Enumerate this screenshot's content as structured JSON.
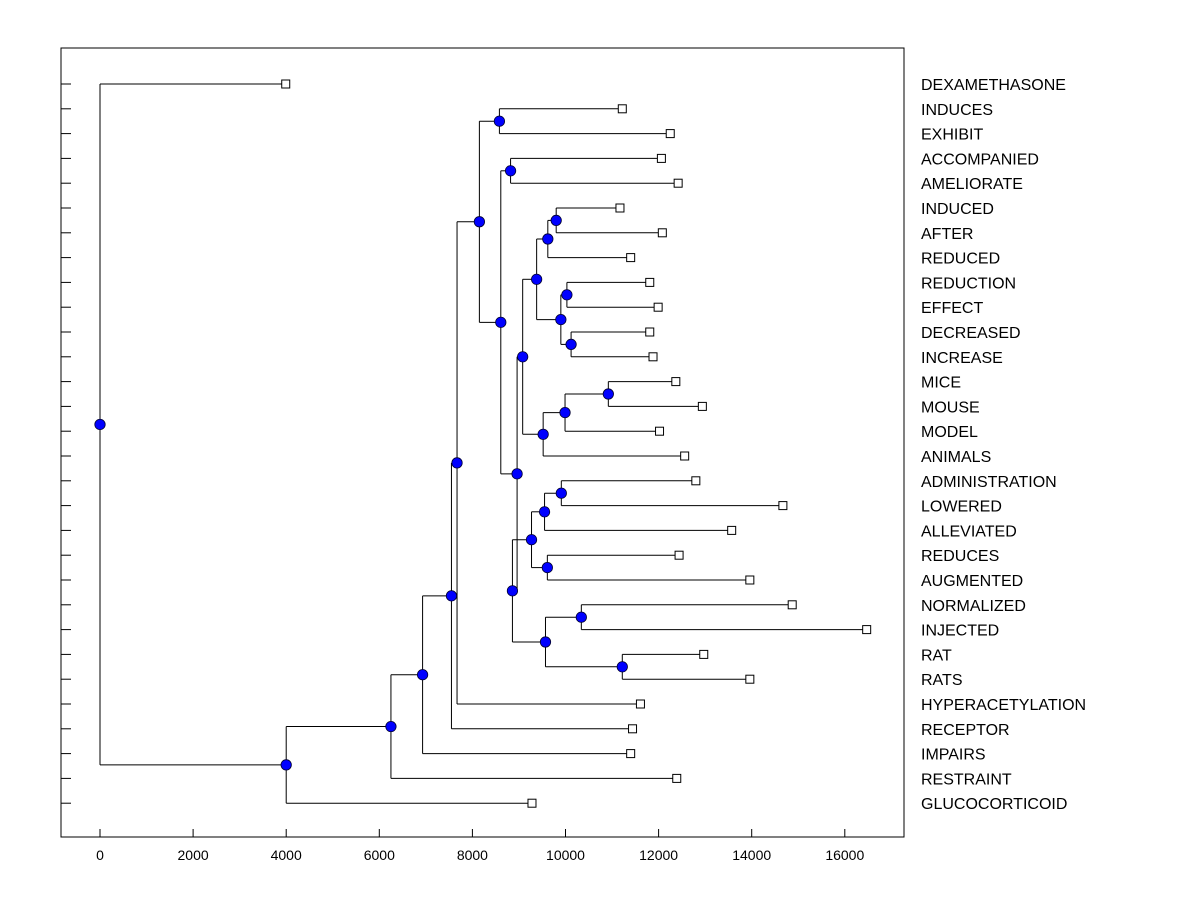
{
  "chart_data": {
    "type": "dendrogram",
    "title": "",
    "xlabel": "",
    "ylabel": "",
    "xlim": [
      -820,
      17300
    ],
    "xticks": [
      0,
      2000,
      4000,
      6000,
      8000,
      10000,
      12000,
      14000,
      16000
    ],
    "xtick_labels": [
      "0",
      "2000",
      "4000",
      "6000",
      "8000",
      "10000",
      "12000",
      "14000",
      "16000"
    ],
    "leaves": [
      {
        "label": "DEXAMETHASONE",
        "x": 3990
      },
      {
        "label": "INDUCES",
        "x": 11220
      },
      {
        "label": "EXHIBIT",
        "x": 12250
      },
      {
        "label": "ACCOMPANIED",
        "x": 12060
      },
      {
        "label": "AMELIORATE",
        "x": 12420
      },
      {
        "label": "INDUCED",
        "x": 11170
      },
      {
        "label": "AFTER",
        "x": 12080
      },
      {
        "label": "REDUCED",
        "x": 11400
      },
      {
        "label": "REDUCTION",
        "x": 11810
      },
      {
        "label": "EFFECT",
        "x": 11990
      },
      {
        "label": "DECREASED",
        "x": 11810
      },
      {
        "label": "INCREASE",
        "x": 11880
      },
      {
        "label": "MICE",
        "x": 12370
      },
      {
        "label": "MOUSE",
        "x": 12940
      },
      {
        "label": "MODEL",
        "x": 12020
      },
      {
        "label": "ANIMALS",
        "x": 12560
      },
      {
        "label": "ADMINISTRATION",
        "x": 12800
      },
      {
        "label": "LOWERED",
        "x": 14670
      },
      {
        "label": "ALLEVIATED",
        "x": 13570
      },
      {
        "label": "REDUCES",
        "x": 12440
      },
      {
        "label": "AUGMENTED",
        "x": 13960
      },
      {
        "label": "NORMALIZED",
        "x": 14870
      },
      {
        "label": "INJECTED",
        "x": 16470
      },
      {
        "label": "RAT",
        "x": 12970
      },
      {
        "label": "RATS",
        "x": 13960
      },
      {
        "label": "HYPERACETYLATION",
        "x": 11610
      },
      {
        "label": "RECEPTOR",
        "x": 11440
      },
      {
        "label": "IMPAIRS",
        "x": 11400
      },
      {
        "label": "RESTRAINT",
        "x": 12390
      },
      {
        "label": "GLUCOCORTICOID",
        "x": 9280
      }
    ],
    "merges": [
      {
        "id": "n1",
        "x": 8580,
        "children": [
          "INDUCES",
          "EXHIBIT"
        ]
      },
      {
        "id": "n2",
        "x": 8820,
        "children": [
          "ACCOMPANIED",
          "AMELIORATE"
        ]
      },
      {
        "id": "n3",
        "x": 9800,
        "children": [
          "INDUCED",
          "AFTER"
        ]
      },
      {
        "id": "n4",
        "x": 9620,
        "children": [
          "n3",
          "REDUCED"
        ]
      },
      {
        "id": "n5",
        "x": 10030,
        "children": [
          "REDUCTION",
          "EFFECT"
        ]
      },
      {
        "id": "n6",
        "x": 10120,
        "children": [
          "DECREASED",
          "INCREASE"
        ]
      },
      {
        "id": "n7",
        "x": 9900,
        "children": [
          "n5",
          "n6"
        ]
      },
      {
        "id": "n8",
        "x": 9380,
        "children": [
          "n4",
          "n7"
        ]
      },
      {
        "id": "n9",
        "x": 10920,
        "children": [
          "MICE",
          "MOUSE"
        ]
      },
      {
        "id": "n10",
        "x": 9990,
        "children": [
          "n9",
          "MODEL"
        ]
      },
      {
        "id": "n11",
        "x": 9520,
        "children": [
          "n10",
          "ANIMALS"
        ]
      },
      {
        "id": "n12",
        "x": 9080,
        "children": [
          "n8",
          "n11"
        ]
      },
      {
        "id": "n13",
        "x": 9910,
        "children": [
          "ADMINISTRATION",
          "LOWERED"
        ]
      },
      {
        "id": "n14",
        "x": 9550,
        "children": [
          "n13",
          "ALLEVIATED"
        ]
      },
      {
        "id": "n15",
        "x": 9610,
        "children": [
          "REDUCES",
          "AUGMENTED"
        ]
      },
      {
        "id": "n16",
        "x": 9270,
        "children": [
          "n14",
          "n15"
        ]
      },
      {
        "id": "n17",
        "x": 10340,
        "children": [
          "NORMALIZED",
          "INJECTED"
        ]
      },
      {
        "id": "n18",
        "x": 11220,
        "children": [
          "RAT",
          "RATS"
        ]
      },
      {
        "id": "n19",
        "x": 9570,
        "children": [
          "n17",
          "n18"
        ]
      },
      {
        "id": "n20",
        "x": 8860,
        "children": [
          "n16",
          "n19"
        ]
      },
      {
        "id": "n21",
        "x": 8960,
        "children": [
          "n12",
          "n20"
        ]
      },
      {
        "id": "n22",
        "x": 8610,
        "children": [
          "n2",
          "n21"
        ]
      },
      {
        "id": "n23",
        "x": 8150,
        "children": [
          "n1",
          "n22"
        ]
      },
      {
        "id": "n24",
        "x": 7670,
        "children": [
          "n23",
          "HYPERACETYLATION"
        ]
      },
      {
        "id": "n25",
        "x": 7550,
        "children": [
          "n24",
          "RECEPTOR"
        ]
      },
      {
        "id": "n26",
        "x": 6930,
        "children": [
          "n25",
          "IMPAIRS"
        ]
      },
      {
        "id": "n27",
        "x": 6250,
        "children": [
          "n26",
          "RESTRAINT"
        ]
      },
      {
        "id": "n28",
        "x": 4000,
        "children": [
          "n27",
          "GLUCOCORTICOID"
        ]
      },
      {
        "id": "root",
        "x": 0,
        "children": [
          "DEXAMETHASONE",
          "n28"
        ]
      }
    ],
    "colors": {
      "node_fill": "#0000ff",
      "leaf_fill": "#ffffff",
      "line": "#000000"
    }
  }
}
